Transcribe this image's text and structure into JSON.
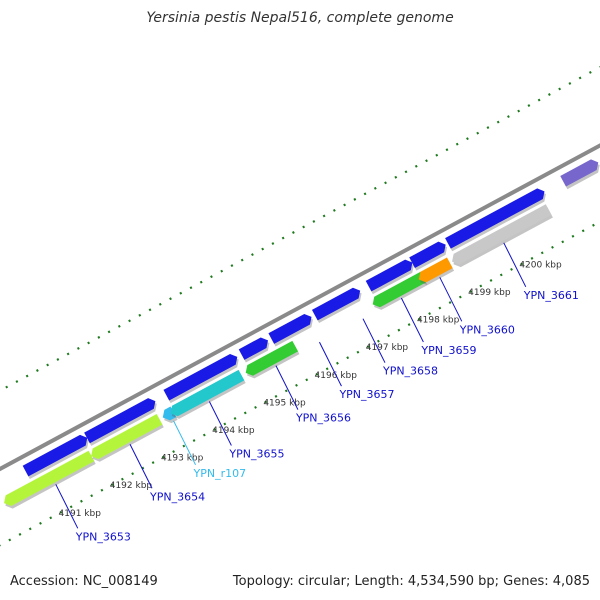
{
  "title": "Yersinia pestis Nepal516, complete genome",
  "footer": {
    "accession": "Accession: NC_008149",
    "summary": "Topology: circular; Length: 4,534,590 bp; Genes: 4,085"
  },
  "colors": {
    "backbone": "#8a8a8a",
    "ruler_dots": "#1f7a1f",
    "cds_forward": "#1a1ae6",
    "label_link": "#1010cc",
    "rna_label": "#33bbee"
  },
  "ruler": {
    "unit": "kbp",
    "ticks": [
      {
        "kbp": 4191,
        "label": "4191 kbp"
      },
      {
        "kbp": 4192,
        "label": "4192 kbp"
      },
      {
        "kbp": 4193,
        "label": "4193 kbp"
      },
      {
        "kbp": 4194,
        "label": "4194 kbp"
      },
      {
        "kbp": 4195,
        "label": "4195 kbp"
      },
      {
        "kbp": 4196,
        "label": "4196 kbp"
      },
      {
        "kbp": 4197,
        "label": "4197 kbp"
      },
      {
        "kbp": 4198,
        "label": "4198 kbp"
      },
      {
        "kbp": 4199,
        "label": "4199 kbp"
      },
      {
        "kbp": 4200,
        "label": "4200 kbp"
      }
    ]
  },
  "features": {
    "forward": [
      {
        "start_kbp": 4190.5,
        "end_kbp": 4191.62,
        "color": "#1a1ae6"
      },
      {
        "start_kbp": 4191.7,
        "end_kbp": 4192.95,
        "color": "#1a1ae6"
      },
      {
        "start_kbp": 4193.25,
        "end_kbp": 4194.55,
        "color": "#1a1ae6"
      },
      {
        "start_kbp": 4194.72,
        "end_kbp": 4195.15,
        "color": "#1a1ae6"
      },
      {
        "start_kbp": 4195.3,
        "end_kbp": 4196.0,
        "color": "#1a1ae6"
      },
      {
        "start_kbp": 4196.15,
        "end_kbp": 4196.95,
        "color": "#1a1ae6"
      },
      {
        "start_kbp": 4197.2,
        "end_kbp": 4197.97,
        "color": "#1a1ae6"
      },
      {
        "start_kbp": 4198.05,
        "end_kbp": 4198.62,
        "color": "#1a1ae6"
      },
      {
        "start_kbp": 4198.75,
        "end_kbp": 4200.55,
        "color": "#1a1ae6"
      },
      {
        "start_kbp": 4201.0,
        "end_kbp": 4201.6,
        "color": "#7766cc"
      }
    ],
    "reverse": [
      {
        "start_kbp": 4190.0,
        "end_kbp": 4191.62,
        "color": "#b4f53c",
        "locus": "YPN_3653"
      },
      {
        "start_kbp": 4191.7,
        "end_kbp": 4192.95,
        "color": "#b4f53c",
        "locus": "YPN_3654"
      },
      {
        "start_kbp": 4193.1,
        "end_kbp": 4193.22,
        "color": "#33bbee",
        "locus": "YPN_r107"
      },
      {
        "start_kbp": 4193.25,
        "end_kbp": 4194.55,
        "color": "#22c8cc",
        "locus": "YPN_3655"
      },
      {
        "start_kbp": 4194.72,
        "end_kbp": 4195.6,
        "color": "#33cc33",
        "locus": "YPN_3656"
      },
      {
        "start_kbp": 4197.2,
        "end_kbp": 4198.1,
        "color": "#33cc33",
        "locus": "YPN_3659"
      },
      {
        "start_kbp": 4198.1,
        "end_kbp": 4198.62,
        "color": "#ff9900",
        "locus": "YPN_3660"
      },
      {
        "start_kbp": 4198.75,
        "end_kbp": 4200.55,
        "color": "#c8c8c8",
        "locus": "YPN_3661"
      }
    ]
  },
  "gene_labels": [
    {
      "text": "YPN_3653",
      "anchor_kbp": 4190.85,
      "color": "#1010cc"
    },
    {
      "text": "YPN_3654",
      "anchor_kbp": 4192.3,
      "color": "#1010cc"
    },
    {
      "text": "YPN_r107",
      "anchor_kbp": 4193.15,
      "color": "#33bbee"
    },
    {
      "text": "YPN_3655",
      "anchor_kbp": 4193.85,
      "color": "#1010cc"
    },
    {
      "text": "YPN_3656",
      "anchor_kbp": 4195.15,
      "color": "#1010cc"
    },
    {
      "text": "YPN_3657",
      "anchor_kbp": 4196.0,
      "color": "#1010cc"
    },
    {
      "text": "YPN_3658",
      "anchor_kbp": 4196.85,
      "color": "#1010cc"
    },
    {
      "text": "YPN_3659",
      "anchor_kbp": 4197.6,
      "color": "#1010cc"
    },
    {
      "text": "YPN_3660",
      "anchor_kbp": 4198.35,
      "color": "#1010cc"
    },
    {
      "text": "YPN_3661",
      "anchor_kbp": 4199.6,
      "color": "#1010cc"
    }
  ]
}
